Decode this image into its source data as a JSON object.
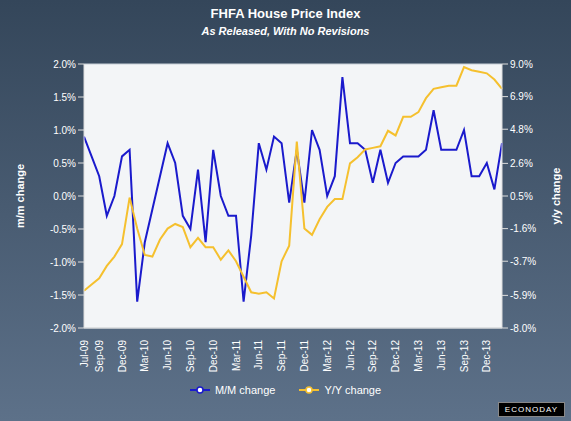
{
  "chart_data": {
    "type": "line",
    "title": "FHFA House Price Index",
    "subtitle": "As Released, With No Revisions",
    "y_label": "m/m change",
    "y2_label": "y/y change",
    "categories": [
      "Jul-09",
      null,
      "Sep-09",
      null,
      null,
      "Dec-09",
      null,
      null,
      "Mar-10",
      null,
      null,
      "Jun-10",
      null,
      null,
      "Sep-10",
      null,
      null,
      "Dec-10",
      null,
      null,
      "Mar-11",
      null,
      null,
      "Jun-11",
      null,
      null,
      "Sep-11",
      null,
      null,
      "Dec-11",
      null,
      null,
      "Mar-12",
      null,
      null,
      "Jun-12",
      null,
      null,
      "Sep-12",
      null,
      null,
      "Dec-12",
      null,
      null,
      "Mar-13",
      null,
      null,
      "Jun-13",
      null,
      null,
      "Sep-13",
      null,
      null,
      "Dec-13",
      null,
      null
    ],
    "series": [
      {
        "name": "M/M change",
        "color": "#1a1acc",
        "marker": "circle",
        "values": [
          0.9,
          0.6,
          0.3,
          -0.3,
          0.0,
          0.6,
          0.7,
          -1.6,
          -0.7,
          -0.2,
          0.3,
          0.8,
          0.5,
          -0.3,
          -0.5,
          0.4,
          -0.7,
          0.7,
          0.0,
          -0.3,
          -0.3,
          -1.6,
          -0.6,
          0.8,
          0.4,
          0.9,
          0.8,
          -0.1,
          0.7,
          -0.1,
          1.0,
          0.7,
          0.0,
          0.3,
          1.8,
          0.8,
          0.8,
          0.7,
          0.2,
          0.7,
          0.2,
          0.5,
          0.6,
          0.6,
          0.6,
          0.7,
          1.3,
          0.7,
          0.7,
          0.7,
          1.0,
          0.3,
          0.3,
          0.5,
          0.1,
          0.8
        ]
      },
      {
        "name": "Y/Y change",
        "color": "#f5c02e",
        "marker": "circle",
        "axis": "y2",
        "values": [
          -5.6,
          -5.2,
          -4.8,
          -4.0,
          -3.4,
          -2.6,
          0.4,
          -1.6,
          -3.3,
          -3.4,
          -2.3,
          -1.6,
          -1.3,
          -1.5,
          -2.8,
          -2.2,
          -2.8,
          -2.8,
          -3.6,
          -3.0,
          -3.7,
          -4.7,
          -5.7,
          -5.8,
          -5.7,
          -6.1,
          -3.7,
          -2.7,
          4.0,
          -1.6,
          -2.0,
          -1.0,
          -0.2,
          0.3,
          0.3,
          2.6,
          3.0,
          3.5,
          3.6,
          3.7,
          4.7,
          4.4,
          5.6,
          5.6,
          5.9,
          6.8,
          7.4,
          7.5,
          7.6,
          7.6,
          8.8,
          8.6,
          8.5,
          8.4,
          8.0,
          7.4
        ]
      }
    ],
    "ylim": [
      -2,
      2
    ],
    "yticks": [
      {
        "value": -2,
        "label": "-2.0%"
      },
      {
        "value": -1.5,
        "label": "-1.5%"
      },
      {
        "value": -1,
        "label": "-1.0%"
      },
      {
        "value": -0.5,
        "label": "-0.5%"
      },
      {
        "value": 0,
        "label": "0.0%"
      },
      {
        "value": 0.5,
        "label": "0.5%"
      },
      {
        "value": 1,
        "label": "1.0%"
      },
      {
        "value": 1.5,
        "label": "1.5%"
      },
      {
        "value": 2,
        "label": "2.0%"
      }
    ],
    "y2lim": [
      -8,
      9
    ],
    "y2ticks": [
      {
        "value": -8,
        "label": "-8.0%"
      },
      {
        "value": -5.9,
        "label": "-5.9%"
      },
      {
        "value": -3.7,
        "label": "-3.7%"
      },
      {
        "value": -1.6,
        "label": "-1.6%"
      },
      {
        "value": 0.5,
        "label": "0.5%"
      },
      {
        "value": 2.6,
        "label": "2.6%"
      },
      {
        "value": 4.8,
        "label": "4.8%"
      },
      {
        "value": 6.9,
        "label": "6.9%"
      },
      {
        "value": 9,
        "label": "9.0%"
      }
    ],
    "grid": true,
    "legend": "bottom",
    "annotations": [
      "ECONODAY"
    ]
  }
}
